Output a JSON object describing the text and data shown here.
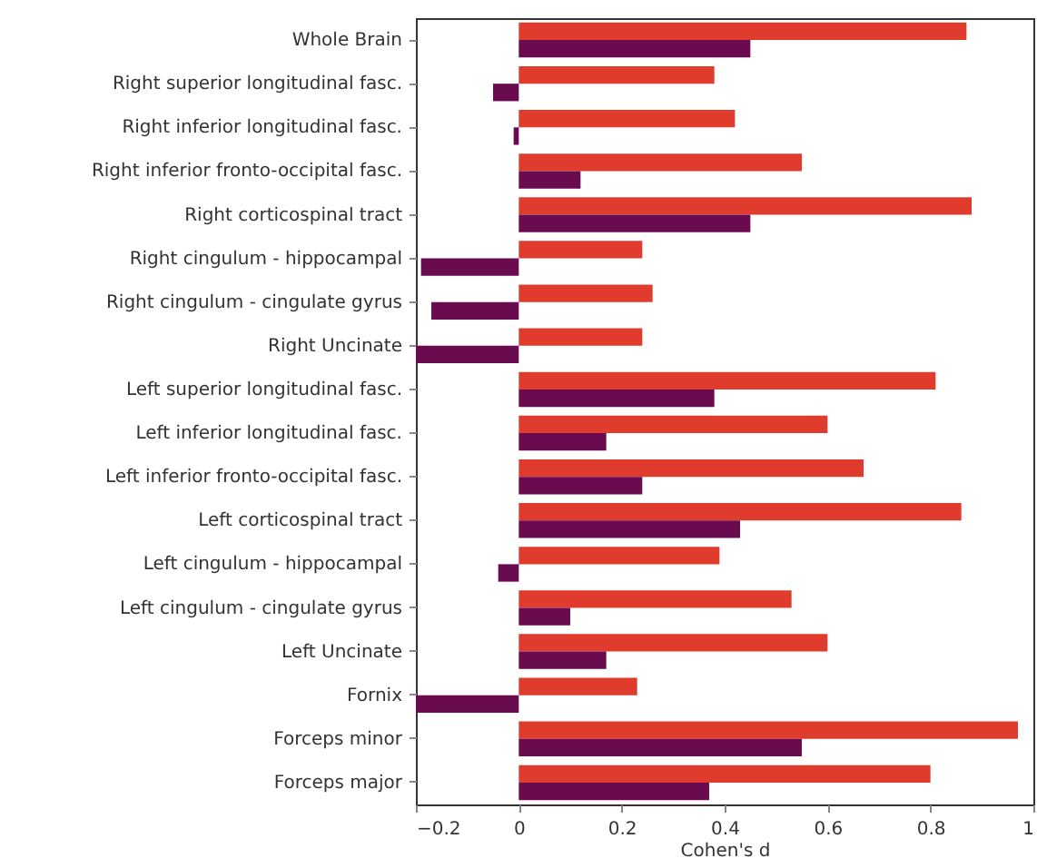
{
  "chart_data": {
    "type": "bar",
    "orientation": "horizontal",
    "xlabel": "Cohen's d",
    "categories": [
      "Whole Brain",
      "Right superior longitudinal fasc.",
      "Right inferior longitudinal fasc.",
      "Right inferior fronto-occipital fasc.",
      "Right corticospinal tract",
      "Right cingulum - hippocampal",
      "Right cingulum - cingulate gyrus",
      "Right Uncinate",
      "Left superior longitudinal fasc.",
      "Left inferior longitudinal fasc.",
      "Left inferior fronto-occipital fasc.",
      "Left corticospinal tract",
      "Left cingulum - hippocampal",
      "Left cingulum - cingulate gyrus",
      "Left Uncinate",
      "Fornix",
      "Forceps minor",
      "Forceps major"
    ],
    "series": [
      {
        "color": "#e03c2e",
        "values": [
          0.87,
          0.38,
          0.42,
          0.55,
          0.88,
          0.24,
          0.26,
          0.24,
          0.81,
          0.6,
          0.67,
          0.86,
          0.39,
          0.53,
          0.6,
          0.23,
          0.97,
          0.8
        ]
      },
      {
        "color": "#6a0a4f",
        "values": [
          0.45,
          -0.05,
          -0.01,
          0.12,
          0.45,
          -0.19,
          -0.17,
          -0.2,
          0.38,
          0.17,
          0.24,
          0.43,
          -0.04,
          0.1,
          0.17,
          -0.2,
          0.55,
          0.37
        ]
      }
    ],
    "xlim": [
      -0.2,
      1
    ],
    "xticks": [
      -0.2,
      0,
      0.2,
      0.4,
      0.6,
      0.8,
      1
    ],
    "grid": false
  }
}
